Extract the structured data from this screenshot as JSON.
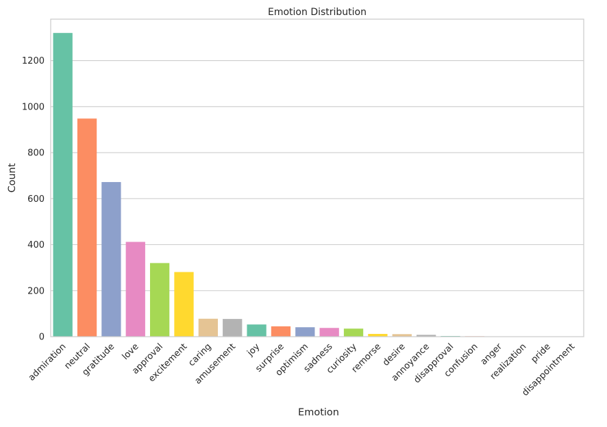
{
  "chart_data": {
    "type": "bar",
    "title": "Emotion Distribution",
    "xlabel": "Emotion",
    "ylabel": "Count",
    "ylim": [
      0,
      1380
    ],
    "yticks": [
      0,
      200,
      400,
      600,
      800,
      1000,
      1200
    ],
    "grid": "horizontal",
    "categories": [
      "admiration",
      "neutral",
      "gratitude",
      "love",
      "approval",
      "excitement",
      "caring",
      "amusement",
      "joy",
      "surprise",
      "optimism",
      "sadness",
      "curiosity",
      "remorse",
      "desire",
      "annoyance",
      "disapproval",
      "confusion",
      "anger",
      "realization",
      "pride",
      "disappointment"
    ],
    "values": [
      1320,
      948,
      672,
      412,
      320,
      281,
      78,
      77,
      53,
      45,
      41,
      38,
      35,
      12,
      11,
      8,
      3,
      2,
      1,
      1,
      1,
      1
    ],
    "colors": [
      "#66c2a5",
      "#fc8d62",
      "#8da0cb",
      "#e78ac3",
      "#a6d854",
      "#ffd92f",
      "#e5c494",
      "#b3b3b3"
    ]
  }
}
